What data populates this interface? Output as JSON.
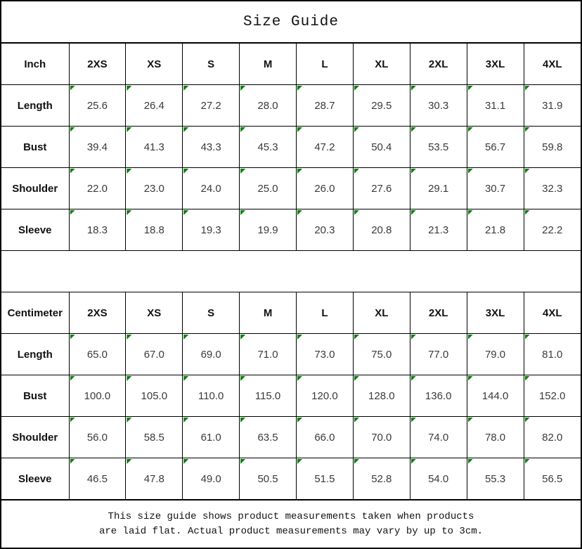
{
  "title": "Size Guide",
  "colors": {
    "border": "#000000",
    "marker_green": "#008000",
    "header_text": "#111111",
    "value_text": "#3a3a3a"
  },
  "inch_table": {
    "unit_label": "Inch",
    "sizes": [
      "2XS",
      "XS",
      "S",
      "M",
      "L",
      "XL",
      "2XL",
      "3XL",
      "4XL"
    ],
    "rows": [
      {
        "label": "Length",
        "values": [
          "25.6",
          "26.4",
          "27.2",
          "28.0",
          "28.7",
          "29.5",
          "30.3",
          "31.1",
          "31.9"
        ]
      },
      {
        "label": "Bust",
        "values": [
          "39.4",
          "41.3",
          "43.3",
          "45.3",
          "47.2",
          "50.4",
          "53.5",
          "56.7",
          "59.8"
        ]
      },
      {
        "label": "Shoulder",
        "values": [
          "22.0",
          "23.0",
          "24.0",
          "25.0",
          "26.0",
          "27.6",
          "29.1",
          "30.7",
          "32.3"
        ]
      },
      {
        "label": "Sleeve",
        "values": [
          "18.3",
          "18.8",
          "19.3",
          "19.9",
          "20.3",
          "20.8",
          "21.3",
          "21.8",
          "22.2"
        ]
      }
    ]
  },
  "cm_table": {
    "unit_label": "Centimeter",
    "sizes": [
      "2XS",
      "XS",
      "S",
      "M",
      "L",
      "XL",
      "2XL",
      "3XL",
      "4XL"
    ],
    "rows": [
      {
        "label": "Length",
        "values": [
          "65.0",
          "67.0",
          "69.0",
          "71.0",
          "73.0",
          "75.0",
          "77.0",
          "79.0",
          "81.0"
        ]
      },
      {
        "label": "Bust",
        "values": [
          "100.0",
          "105.0",
          "110.0",
          "115.0",
          "120.0",
          "128.0",
          "136.0",
          "144.0",
          "152.0"
        ]
      },
      {
        "label": "Shoulder",
        "values": [
          "56.0",
          "58.5",
          "61.0",
          "63.5",
          "66.0",
          "70.0",
          "74.0",
          "78.0",
          "82.0"
        ]
      },
      {
        "label": "Sleeve",
        "values": [
          "46.5",
          "47.8",
          "49.0",
          "50.5",
          "51.5",
          "52.8",
          "54.0",
          "55.3",
          "56.5"
        ]
      }
    ]
  },
  "footer": {
    "line1": "This size guide shows product measurements taken when products",
    "line2": "are laid flat. Actual product measurements may vary by up to 3cm."
  },
  "chart_data": [
    {
      "type": "table",
      "title": "Size Guide",
      "unit": "Inch",
      "columns": [
        "2XS",
        "XS",
        "S",
        "M",
        "L",
        "XL",
        "2XL",
        "3XL",
        "4XL"
      ],
      "rows": [
        {
          "label": "Length",
          "values": [
            25.6,
            26.4,
            27.2,
            28.0,
            28.7,
            29.5,
            30.3,
            31.1,
            31.9
          ]
        },
        {
          "label": "Bust",
          "values": [
            39.4,
            41.3,
            43.3,
            45.3,
            47.2,
            50.4,
            53.5,
            56.7,
            59.8
          ]
        },
        {
          "label": "Shoulder",
          "values": [
            22.0,
            23.0,
            24.0,
            25.0,
            26.0,
            27.6,
            29.1,
            30.7,
            32.3
          ]
        },
        {
          "label": "Sleeve",
          "values": [
            18.3,
            18.8,
            19.3,
            19.9,
            20.3,
            20.8,
            21.3,
            21.8,
            22.2
          ]
        }
      ]
    },
    {
      "type": "table",
      "title": "Size Guide",
      "unit": "Centimeter",
      "columns": [
        "2XS",
        "XS",
        "S",
        "M",
        "L",
        "XL",
        "2XL",
        "3XL",
        "4XL"
      ],
      "rows": [
        {
          "label": "Length",
          "values": [
            65.0,
            67.0,
            69.0,
            71.0,
            73.0,
            75.0,
            77.0,
            79.0,
            81.0
          ]
        },
        {
          "label": "Bust",
          "values": [
            100.0,
            105.0,
            110.0,
            115.0,
            120.0,
            128.0,
            136.0,
            144.0,
            152.0
          ]
        },
        {
          "label": "Shoulder",
          "values": [
            56.0,
            58.5,
            61.0,
            63.5,
            66.0,
            70.0,
            74.0,
            78.0,
            82.0
          ]
        },
        {
          "label": "Sleeve",
          "values": [
            46.5,
            47.8,
            49.0,
            50.5,
            51.5,
            52.8,
            54.0,
            55.3,
            56.5
          ]
        }
      ],
      "note": "This size guide shows product measurements taken when products are laid flat. Actual product measurements may vary by up to 3cm."
    }
  ]
}
